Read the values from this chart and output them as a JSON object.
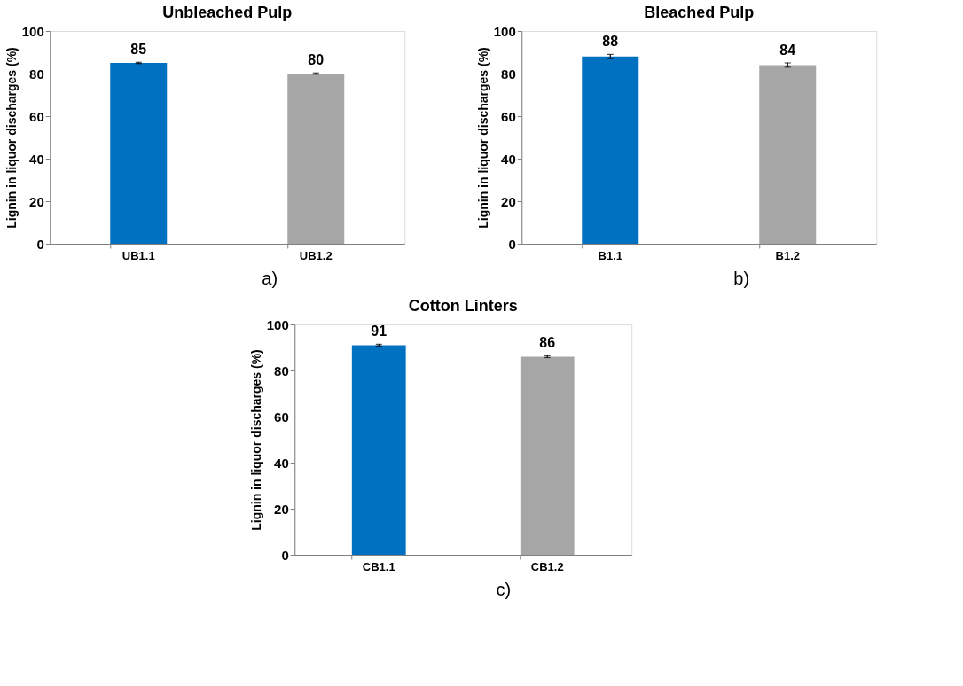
{
  "chart_data": [
    {
      "type": "bar",
      "title": "Unbleached Pulp",
      "ylabel": "Lignin  in liquor discharges (%)",
      "categories": [
        "UB1.1",
        "UB1.2"
      ],
      "values": [
        85,
        80
      ],
      "colors": [
        "#0070c0",
        "#a6a6a6"
      ],
      "errors": [
        0.3,
        0.3
      ],
      "ylim": [
        0,
        100
      ],
      "yticks": [
        0,
        20,
        40,
        60,
        80,
        100
      ],
      "data_labels": true,
      "grid": false,
      "annotations": [
        "a)"
      ]
    },
    {
      "type": "bar",
      "title": "Bleached Pulp",
      "ylabel": "Lignin  in liquor discharges (%)",
      "categories": [
        "B1.1",
        "B1.2"
      ],
      "values": [
        88,
        84
      ],
      "colors": [
        "#0070c0",
        "#a6a6a6"
      ],
      "errors": [
        1,
        1
      ],
      "ylim": [
        0,
        100
      ],
      "yticks": [
        0,
        20,
        40,
        60,
        80,
        100
      ],
      "data_labels": true,
      "grid": false,
      "annotations": [
        "b)"
      ]
    },
    {
      "type": "bar",
      "title": "Cotton Linters",
      "ylabel": "Lignin  in liquor discharges (%)",
      "categories": [
        "CB1.1",
        "CB1.2"
      ],
      "values": [
        91,
        86
      ],
      "colors": [
        "#0070c0",
        "#a6a6a6"
      ],
      "errors": [
        0.4,
        0.4
      ],
      "ylim": [
        0,
        100
      ],
      "yticks": [
        0,
        20,
        40,
        60,
        80,
        100
      ],
      "data_labels": true,
      "grid": false,
      "annotations": [
        "c)"
      ]
    }
  ]
}
